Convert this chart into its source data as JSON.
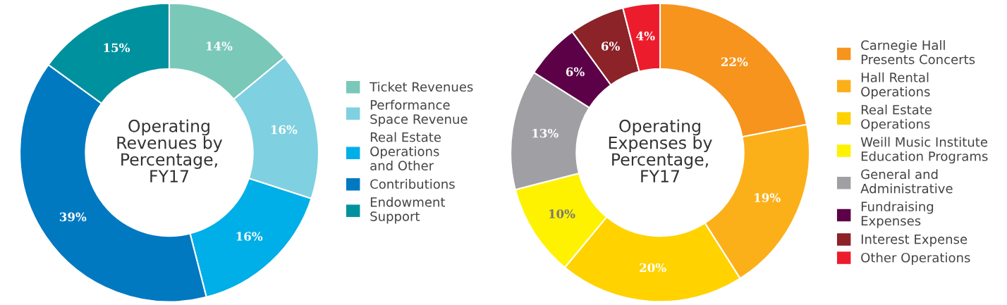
{
  "chart_data": [
    {
      "type": "donut",
      "title": "Operating\nRevenues by\nPercentage,\nFY17",
      "categories": [
        "Ticket Revenues",
        "Performance\nSpace Revenue",
        "Real Estate\nOperations\nand Other",
        "Contributions",
        "Endowment\nSupport"
      ],
      "values": [
        14,
        16,
        16,
        39,
        15
      ],
      "colors": [
        "#7ac8b8",
        "#7fd0e0",
        "#00aee8",
        "#0079c1",
        "#00919e"
      ],
      "value_labels": [
        "14%",
        "16%",
        "16%",
        "39%",
        "15%"
      ],
      "legend": "right"
    },
    {
      "type": "donut",
      "title": "Operating\nExpenses by\nPercentage,\nFY17",
      "categories": [
        "Carnegie Hall\nPresents Concerts",
        "Hall Rental\nOperations",
        "Real Estate\nOperations",
        "Weill Music Institute\nEducation Programs",
        "General and\nAdministrative",
        "Fundraising\nExpenses",
        "Interest Expense",
        "Other Operations"
      ],
      "values": [
        22,
        19,
        20,
        10,
        13,
        6,
        6,
        4
      ],
      "colors": [
        "#f7941d",
        "#fbb01a",
        "#ffd200",
        "#fff200",
        "#a0a0a4",
        "#5c0048",
        "#8b2328",
        "#ed1c2c"
      ],
      "value_labels": [
        "22%",
        "19%",
        "20%",
        "10%",
        "13%",
        "6%",
        "6%",
        "4%"
      ],
      "legend": "right"
    }
  ]
}
